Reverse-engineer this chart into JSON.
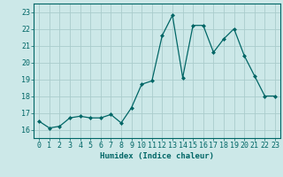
{
  "x": [
    0,
    1,
    2,
    3,
    4,
    5,
    6,
    7,
    8,
    9,
    10,
    11,
    12,
    13,
    14,
    15,
    16,
    17,
    18,
    19,
    20,
    21,
    22,
    23
  ],
  "y": [
    16.5,
    16.1,
    16.2,
    16.7,
    16.8,
    16.7,
    16.7,
    16.9,
    16.4,
    17.3,
    18.7,
    18.9,
    21.6,
    22.8,
    19.1,
    22.2,
    22.2,
    20.6,
    21.4,
    22.0,
    20.4,
    19.2,
    18.0,
    18.0
  ],
  "line_color": "#006666",
  "marker": "D",
  "marker_size": 2.0,
  "bg_color": "#cce8e8",
  "grid_color": "#aacccc",
  "xlabel": "Humidex (Indice chaleur)",
  "xlim": [
    -0.5,
    23.5
  ],
  "ylim": [
    15.5,
    23.5
  ],
  "yticks": [
    16,
    17,
    18,
    19,
    20,
    21,
    22,
    23
  ],
  "xticks": [
    0,
    1,
    2,
    3,
    4,
    5,
    6,
    7,
    8,
    9,
    10,
    11,
    12,
    13,
    14,
    15,
    16,
    17,
    18,
    19,
    20,
    21,
    22,
    23
  ],
  "tick_fontsize": 6.0,
  "xlabel_fontsize": 6.5,
  "linewidth": 0.9
}
